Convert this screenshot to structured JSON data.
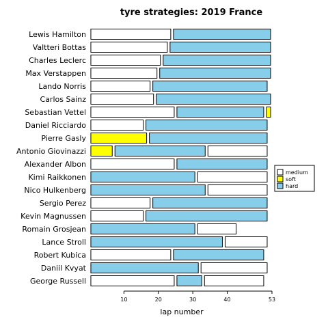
{
  "chart_data": {
    "type": "bar",
    "orientation": "horizontal-stacked-stints",
    "title": "tyre strategies: 2019 France",
    "xlabel": "lap number",
    "ylabel": "",
    "xlim": [
      1,
      53
    ],
    "xticks": [
      10,
      20,
      30,
      40,
      53
    ],
    "compound_colors": {
      "medium": "#ffffff",
      "soft": "#ffff00",
      "hard": "#87ceeb"
    },
    "legend": {
      "position": "right",
      "items": [
        "medium",
        "soft",
        "hard"
      ]
    },
    "drivers": [
      {
        "name": "Lewis Hamilton",
        "stints": [
          {
            "compound": "medium",
            "start": 1,
            "end": 24
          },
          {
            "compound": "hard",
            "start": 25,
            "end": 53
          }
        ]
      },
      {
        "name": "Valtteri Bottas",
        "stints": [
          {
            "compound": "medium",
            "start": 1,
            "end": 23
          },
          {
            "compound": "hard",
            "start": 24,
            "end": 53
          }
        ]
      },
      {
        "name": "Charles Leclerc",
        "stints": [
          {
            "compound": "medium",
            "start": 1,
            "end": 21
          },
          {
            "compound": "hard",
            "start": 22,
            "end": 53
          }
        ]
      },
      {
        "name": "Max Verstappen",
        "stints": [
          {
            "compound": "medium",
            "start": 1,
            "end": 20
          },
          {
            "compound": "hard",
            "start": 21,
            "end": 53
          }
        ]
      },
      {
        "name": "Lando Norris",
        "stints": [
          {
            "compound": "medium",
            "start": 1,
            "end": 18
          },
          {
            "compound": "hard",
            "start": 19,
            "end": 52
          }
        ]
      },
      {
        "name": "Carlos Sainz",
        "stints": [
          {
            "compound": "medium",
            "start": 1,
            "end": 19
          },
          {
            "compound": "hard",
            "start": 20,
            "end": 53
          }
        ]
      },
      {
        "name": "Sebastian Vettel",
        "stints": [
          {
            "compound": "medium",
            "start": 1,
            "end": 25
          },
          {
            "compound": "hard",
            "start": 26,
            "end": 51
          },
          {
            "compound": "soft",
            "start": 52,
            "end": 53
          }
        ]
      },
      {
        "name": "Daniel Ricciardo",
        "stints": [
          {
            "compound": "medium",
            "start": 1,
            "end": 16
          },
          {
            "compound": "hard",
            "start": 17,
            "end": 52
          }
        ]
      },
      {
        "name": "Pierre Gasly",
        "stints": [
          {
            "compound": "soft",
            "start": 1,
            "end": 17
          },
          {
            "compound": "hard",
            "start": 18,
            "end": 52
          }
        ]
      },
      {
        "name": "Antonio Giovinazzi",
        "stints": [
          {
            "compound": "soft",
            "start": 1,
            "end": 7
          },
          {
            "compound": "hard",
            "start": 8,
            "end": 34
          },
          {
            "compound": "medium",
            "start": 35,
            "end": 52
          }
        ]
      },
      {
        "name": "Alexander Albon",
        "stints": [
          {
            "compound": "medium",
            "start": 1,
            "end": 25
          },
          {
            "compound": "hard",
            "start": 26,
            "end": 52
          }
        ]
      },
      {
        "name": "Kimi Raikkonen",
        "stints": [
          {
            "compound": "hard",
            "start": 1,
            "end": 31
          },
          {
            "compound": "medium",
            "start": 32,
            "end": 52
          }
        ]
      },
      {
        "name": "Nico Hulkenberg",
        "stints": [
          {
            "compound": "hard",
            "start": 1,
            "end": 34
          },
          {
            "compound": "medium",
            "start": 35,
            "end": 52
          }
        ]
      },
      {
        "name": "Sergio Perez",
        "stints": [
          {
            "compound": "medium",
            "start": 1,
            "end": 18
          },
          {
            "compound": "hard",
            "start": 19,
            "end": 52
          }
        ]
      },
      {
        "name": "Kevin Magnussen",
        "stints": [
          {
            "compound": "medium",
            "start": 1,
            "end": 16
          },
          {
            "compound": "hard",
            "start": 17,
            "end": 52
          }
        ]
      },
      {
        "name": "Romain Grosjean",
        "stints": [
          {
            "compound": "hard",
            "start": 1,
            "end": 31
          },
          {
            "compound": "medium",
            "start": 32,
            "end": 43
          }
        ]
      },
      {
        "name": "Lance Stroll",
        "stints": [
          {
            "compound": "hard",
            "start": 1,
            "end": 39
          },
          {
            "compound": "medium",
            "start": 40,
            "end": 52
          }
        ]
      },
      {
        "name": "Robert Kubica",
        "stints": [
          {
            "compound": "medium",
            "start": 1,
            "end": 24
          },
          {
            "compound": "hard",
            "start": 25,
            "end": 51
          }
        ]
      },
      {
        "name": "Daniil Kvyat",
        "stints": [
          {
            "compound": "hard",
            "start": 1,
            "end": 32
          },
          {
            "compound": "medium",
            "start": 33,
            "end": 52
          }
        ]
      },
      {
        "name": "George Russell",
        "stints": [
          {
            "compound": "medium",
            "start": 1,
            "end": 25
          },
          {
            "compound": "hard",
            "start": 26,
            "end": 33
          },
          {
            "compound": "medium",
            "start": 34,
            "end": 51
          }
        ]
      }
    ]
  }
}
